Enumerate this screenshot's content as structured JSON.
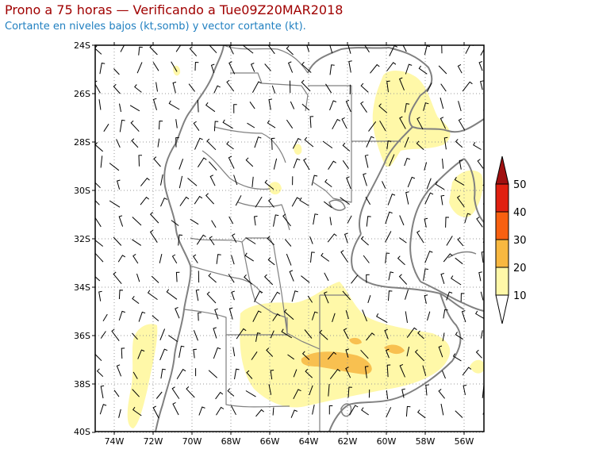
{
  "title": "Prono a 75 horas — Verificando a Tue09Z20MAR2018",
  "subtitle": "Cortante en niveles bajos (kt,somb) y vector cortante (kt).",
  "map": {
    "lat_labels": [
      "24S",
      "26S",
      "28S",
      "30S",
      "32S",
      "34S",
      "36S",
      "38S",
      "40S"
    ],
    "lon_labels": [
      "74W",
      "72W",
      "70W",
      "68W",
      "66W",
      "64W",
      "62W",
      "60W",
      "58W",
      "56W"
    ],
    "lon_range": [
      -75,
      -55
    ],
    "lat_range": [
      -40,
      -24
    ],
    "grid_lines": "dotted",
    "colors": {
      "border": "#808080",
      "frame": "#000000",
      "barb": "#000000"
    }
  },
  "colorbar": {
    "labels": [
      "50",
      "40",
      "30",
      "20",
      "10"
    ],
    "colors": [
      "#a01010",
      "#e02010",
      "#f86010",
      "#f8b840",
      "#fff8a8"
    ],
    "units": "kt"
  }
}
